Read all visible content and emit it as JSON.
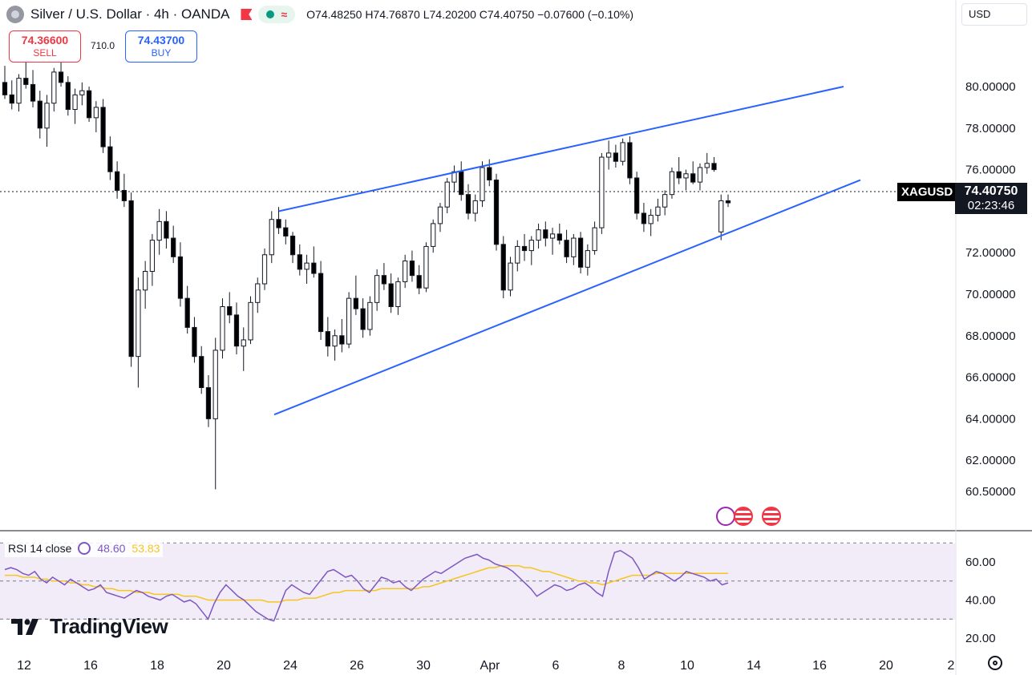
{
  "header": {
    "title": "Silver / U.S. Dollar · 4h · OANDA",
    "ohlc": "O74.48250 H74.76870 L74.20200 C74.40750 −0.07600 (−0.10%)",
    "status_wave": "≈"
  },
  "trade": {
    "sell_price": "74.36600",
    "sell_label": "SELL",
    "spread": "710.0",
    "buy_price": "74.43700",
    "buy_label": "BUY"
  },
  "currency": "USD",
  "last_price": {
    "symbol": "XAGUSD",
    "value": "74.40750",
    "countdown": "02:23:46"
  },
  "rsi": {
    "label": "RSI 14 close",
    "value": "48.60",
    "ma_value": "53.83",
    "ticks": [
      "60.00",
      "40.00",
      "20.00"
    ]
  },
  "brand": "TradingView",
  "colors": {
    "up": "#ffffff",
    "down": "#000000",
    "trendline": "#2962ff",
    "rsi_line": "#7e57c2",
    "rsi_ma": "#f7c51f",
    "rsi_band": "#ede7f6"
  },
  "chart_data": {
    "type": "candlestick",
    "symbol": "XAGUSD",
    "interval": "4h",
    "price_ticks": [
      "80.00000",
      "78.00000",
      "76.00000",
      "72.00000",
      "70.00000",
      "68.00000",
      "66.00000",
      "64.00000",
      "62.00000",
      "60.50000"
    ],
    "x_ticks": [
      "12",
      "16",
      "18",
      "20",
      "24",
      "26",
      "30",
      "Apr",
      "6",
      "8",
      "10",
      "14",
      "16",
      "20",
      "2"
    ],
    "ylim": [
      59.8,
      81.5
    ],
    "trendlines": [
      {
        "name": "upper",
        "from": [
          0.0,
          74.0
        ],
        "to": [
          1.0,
          80.0
        ]
      },
      {
        "name": "lower",
        "from": [
          0.0,
          64.2
        ],
        "to": [
          1.0,
          75.5
        ]
      }
    ],
    "candles": [
      [
        80.2,
        81.0,
        79.4,
        79.6
      ],
      [
        79.6,
        80.3,
        78.9,
        79.2
      ],
      [
        79.2,
        80.6,
        78.8,
        80.4
      ],
      [
        80.4,
        81.2,
        79.9,
        80.1
      ],
      [
        80.1,
        80.8,
        79.0,
        79.3
      ],
      [
        79.3,
        79.8,
        77.5,
        78.0
      ],
      [
        78.0,
        79.6,
        77.1,
        79.2
      ],
      [
        79.2,
        80.9,
        78.8,
        80.7
      ],
      [
        80.7,
        81.3,
        80.0,
        80.2
      ],
      [
        80.2,
        80.5,
        78.6,
        78.9
      ],
      [
        78.9,
        79.9,
        78.2,
        79.6
      ],
      [
        79.6,
        80.2,
        79.1,
        79.8
      ],
      [
        79.8,
        80.0,
        78.3,
        78.5
      ],
      [
        78.5,
        79.3,
        77.8,
        79.0
      ],
      [
        79.0,
        79.4,
        76.8,
        77.1
      ],
      [
        77.1,
        77.6,
        75.5,
        75.9
      ],
      [
        75.9,
        76.4,
        74.6,
        75.0
      ],
      [
        75.0,
        75.8,
        74.2,
        74.5
      ],
      [
        74.5,
        74.9,
        66.5,
        67.0
      ],
      [
        67.0,
        70.8,
        65.5,
        70.2
      ],
      [
        70.2,
        71.6,
        69.3,
        71.1
      ],
      [
        71.1,
        72.9,
        70.4,
        72.6
      ],
      [
        72.6,
        74.1,
        71.9,
        73.5
      ],
      [
        73.5,
        74.0,
        72.2,
        72.7
      ],
      [
        72.7,
        73.3,
        71.5,
        71.8
      ],
      [
        71.8,
        72.5,
        69.4,
        69.8
      ],
      [
        69.8,
        70.4,
        68.1,
        68.4
      ],
      [
        68.4,
        68.9,
        66.7,
        67.0
      ],
      [
        67.0,
        67.5,
        65.2,
        65.5
      ],
      [
        65.5,
        66.1,
        63.6,
        64.0
      ],
      [
        64.0,
        67.9,
        60.6,
        67.3
      ],
      [
        67.3,
        69.8,
        66.9,
        69.4
      ],
      [
        69.4,
        70.1,
        68.6,
        69.0
      ],
      [
        69.0,
        69.6,
        67.1,
        67.5
      ],
      [
        67.5,
        68.4,
        66.3,
        67.8
      ],
      [
        67.8,
        69.9,
        67.6,
        69.6
      ],
      [
        69.6,
        70.8,
        69.1,
        70.5
      ],
      [
        70.5,
        72.2,
        70.2,
        71.9
      ],
      [
        71.9,
        74.0,
        71.5,
        73.6
      ],
      [
        73.6,
        74.2,
        72.9,
        73.2
      ],
      [
        73.2,
        73.6,
        72.4,
        72.8
      ],
      [
        72.8,
        73.0,
        71.5,
        71.9
      ],
      [
        71.9,
        72.4,
        70.9,
        71.2
      ],
      [
        71.2,
        71.9,
        70.5,
        71.5
      ],
      [
        71.5,
        72.3,
        70.8,
        71.0
      ],
      [
        71.0,
        71.6,
        67.8,
        68.2
      ],
      [
        68.2,
        68.9,
        67.0,
        67.5
      ],
      [
        67.5,
        68.3,
        66.8,
        68.0
      ],
      [
        68.0,
        68.8,
        67.2,
        67.6
      ],
      [
        67.6,
        70.1,
        67.4,
        69.8
      ],
      [
        69.8,
        70.9,
        69.0,
        69.3
      ],
      [
        69.3,
        69.8,
        67.9,
        68.3
      ],
      [
        68.3,
        69.9,
        68.0,
        69.6
      ],
      [
        69.6,
        71.2,
        69.2,
        70.9
      ],
      [
        70.9,
        71.5,
        70.2,
        70.5
      ],
      [
        70.5,
        71.0,
        69.1,
        69.4
      ],
      [
        69.4,
        70.8,
        69.0,
        70.6
      ],
      [
        70.6,
        71.9,
        70.3,
        71.6
      ],
      [
        71.6,
        72.1,
        70.6,
        70.9
      ],
      [
        70.9,
        71.4,
        70.0,
        70.3
      ],
      [
        70.3,
        72.5,
        70.1,
        72.3
      ],
      [
        72.3,
        73.6,
        72.0,
        73.4
      ],
      [
        73.4,
        74.4,
        73.0,
        74.2
      ],
      [
        74.2,
        75.6,
        73.9,
        75.4
      ],
      [
        75.4,
        76.2,
        74.9,
        75.9
      ],
      [
        75.9,
        76.4,
        74.5,
        74.8
      ],
      [
        74.8,
        75.3,
        73.6,
        73.9
      ],
      [
        73.9,
        74.8,
        73.5,
        74.5
      ],
      [
        74.5,
        76.4,
        74.2,
        76.1
      ],
      [
        76.1,
        76.5,
        75.2,
        75.5
      ],
      [
        75.5,
        75.8,
        72.1,
        72.4
      ],
      [
        72.4,
        72.8,
        69.8,
        70.2
      ],
      [
        70.2,
        71.8,
        69.9,
        71.5
      ],
      [
        71.5,
        72.6,
        71.1,
        72.3
      ],
      [
        72.3,
        72.9,
        71.6,
        72.1
      ],
      [
        72.1,
        72.8,
        71.4,
        72.6
      ],
      [
        72.6,
        73.4,
        72.2,
        73.1
      ],
      [
        73.1,
        73.5,
        72.3,
        72.7
      ],
      [
        72.7,
        73.2,
        71.9,
        72.9
      ],
      [
        72.9,
        73.4,
        72.4,
        72.6
      ],
      [
        72.6,
        73.1,
        71.5,
        71.8
      ],
      [
        71.8,
        72.9,
        71.4,
        72.7
      ],
      [
        72.7,
        73.0,
        71.0,
        71.3
      ],
      [
        71.3,
        72.4,
        70.9,
        72.1
      ],
      [
        72.1,
        73.5,
        71.9,
        73.2
      ],
      [
        73.2,
        76.8,
        72.9,
        76.6
      ],
      [
        76.6,
        77.4,
        76.0,
        76.8
      ],
      [
        76.8,
        77.2,
        76.1,
        76.4
      ],
      [
        76.4,
        77.5,
        76.2,
        77.3
      ],
      [
        77.3,
        77.6,
        75.3,
        75.6
      ],
      [
        75.6,
        75.9,
        73.6,
        73.9
      ],
      [
        73.9,
        74.4,
        73.0,
        73.4
      ],
      [
        73.4,
        74.1,
        72.8,
        73.8
      ],
      [
        73.8,
        74.6,
        73.5,
        74.2
      ],
      [
        74.2,
        75.0,
        73.8,
        74.8
      ],
      [
        74.8,
        76.1,
        74.6,
        75.9
      ],
      [
        75.9,
        76.6,
        75.3,
        75.6
      ],
      [
        75.6,
        76.0,
        75.0,
        75.8
      ],
      [
        75.8,
        76.4,
        75.3,
        75.4
      ],
      [
        75.4,
        76.3,
        75.0,
        76.1
      ],
      [
        76.1,
        76.8,
        75.8,
        76.3
      ],
      [
        76.3,
        76.6,
        75.9,
        76.0
      ],
      [
        73.0,
        74.8,
        72.6,
        74.5
      ],
      [
        74.5,
        74.8,
        74.2,
        74.4
      ]
    ],
    "rsi": [
      56,
      57,
      56,
      54,
      53,
      55,
      51,
      49,
      52,
      50,
      48,
      51,
      49,
      47,
      45,
      46,
      48,
      44,
      43,
      42,
      41,
      43,
      45,
      44,
      42,
      41,
      40,
      42,
      43,
      41,
      39,
      40,
      38,
      34,
      30,
      38,
      44,
      48,
      45,
      42,
      40,
      37,
      34,
      32,
      30,
      29,
      37,
      45,
      48,
      46,
      44,
      43,
      47,
      51,
      55,
      56,
      54,
      52,
      53,
      50,
      46,
      44,
      48,
      52,
      51,
      49,
      50,
      47,
      45,
      48,
      51,
      53,
      55,
      54,
      56,
      58,
      60,
      62,
      63,
      64,
      62,
      61,
      59,
      58,
      57,
      55,
      52,
      49,
      46,
      42,
      44,
      46,
      48,
      47,
      45,
      46,
      48,
      49,
      47,
      44,
      42,
      55,
      65,
      66,
      64,
      62,
      57,
      51,
      53,
      55,
      54,
      52,
      50,
      52,
      55,
      54,
      53,
      52,
      50,
      51,
      48,
      49
    ],
    "rsi_ma": [
      53,
      53,
      53,
      52,
      52,
      52,
      51,
      51,
      50,
      50,
      50,
      49,
      49,
      48,
      48,
      47,
      47,
      46,
      46,
      45,
      45,
      45,
      44,
      44,
      44,
      43,
      43,
      43,
      43,
      43,
      42,
      42,
      42,
      41,
      40,
      40,
      40,
      40,
      40,
      40,
      40,
      40,
      40,
      40,
      39,
      39,
      39,
      40,
      40,
      40,
      41,
      41,
      41,
      42,
      43,
      44,
      44,
      45,
      45,
      45,
      45,
      45,
      45,
      46,
      46,
      46,
      46,
      46,
      46,
      46,
      47,
      47,
      48,
      49,
      50,
      51,
      52,
      53,
      54,
      55,
      56,
      57,
      57,
      58,
      58,
      58,
      58,
      57,
      57,
      56,
      55,
      55,
      54,
      53,
      52,
      51,
      50,
      50,
      49,
      49,
      48,
      49,
      50,
      51,
      52,
      53,
      53,
      53,
      53,
      54,
      54,
      54,
      54,
      54,
      54,
      54,
      54,
      54,
      54,
      54,
      54,
      54
    ],
    "rsi_levels": [
      70,
      50,
      30
    ],
    "rsi_ylim": [
      16,
      74
    ]
  }
}
